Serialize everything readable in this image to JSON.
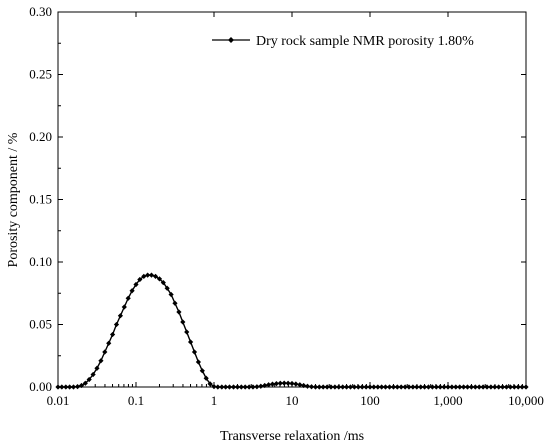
{
  "chart_data": {
    "type": "line",
    "xlabel": "Transverse relaxation /ms",
    "ylabel": "Porosity component / %",
    "xscale": "log",
    "xlim": [
      0.01,
      10000
    ],
    "ylim": [
      0,
      0.3
    ],
    "x_ticks": [
      0.01,
      0.1,
      1,
      10,
      100,
      1000,
      10000
    ],
    "x_tick_labels": [
      "0.01",
      "0.1",
      "1",
      "10",
      "100",
      "1,000",
      "10,000"
    ],
    "y_ticks": [
      0,
      0.05,
      0.1,
      0.15,
      0.2,
      0.25,
      0.3
    ],
    "y_tick_labels": [
      "0.00",
      "0.05",
      "0.10",
      "0.15",
      "0.20",
      "0.25",
      "0.30"
    ],
    "grid": false,
    "legend_position": "top-right",
    "series": [
      {
        "name": "Dry rock sample NMR porosity 1.80%",
        "color": "#000000",
        "marker": "diamond",
        "x": [
          0.01,
          0.0112,
          0.0126,
          0.0141,
          0.0158,
          0.0178,
          0.02,
          0.0224,
          0.0251,
          0.0282,
          0.0316,
          0.0355,
          0.0398,
          0.0447,
          0.0501,
          0.0562,
          0.0631,
          0.0708,
          0.0794,
          0.0891,
          0.1,
          0.112,
          0.126,
          0.141,
          0.158,
          0.178,
          0.2,
          0.224,
          0.251,
          0.282,
          0.316,
          0.355,
          0.398,
          0.447,
          0.501,
          0.562,
          0.631,
          0.708,
          0.794,
          0.891,
          1.0,
          1.12,
          1.26,
          1.41,
          1.58,
          1.78,
          2.0,
          2.24,
          2.51,
          2.82,
          3.16,
          3.55,
          3.98,
          4.47,
          5.01,
          5.62,
          6.31,
          7.08,
          7.94,
          8.91,
          10.0,
          11.2,
          12.6,
          14.1,
          15.8,
          17.8,
          20.0,
          22.4,
          25.1,
          28.2,
          31.6,
          35.5,
          39.8,
          44.7,
          50.1,
          56.2,
          63.1,
          70.8,
          79.4,
          89.1,
          100,
          112,
          126,
          141,
          158,
          178,
          200,
          224,
          251,
          282,
          316,
          355,
          398,
          447,
          501,
          562,
          631,
          708,
          794,
          891,
          1000,
          1122,
          1259,
          1413,
          1585,
          1778,
          1995,
          2239,
          2512,
          2818,
          3162,
          3548,
          3981,
          4467,
          5012,
          5623,
          6310,
          7079,
          7943,
          8913,
          10000
        ],
        "y": [
          0,
          0,
          0,
          0,
          0,
          0.0003,
          0.0012,
          0.003,
          0.006,
          0.01,
          0.015,
          0.021,
          0.028,
          0.035,
          0.042,
          0.05,
          0.057,
          0.064,
          0.071,
          0.077,
          0.082,
          0.086,
          0.0885,
          0.0895,
          0.0895,
          0.0885,
          0.0865,
          0.0835,
          0.079,
          0.074,
          0.067,
          0.06,
          0.052,
          0.044,
          0.036,
          0.028,
          0.02,
          0.013,
          0.007,
          0.0025,
          0.0003,
          0,
          0,
          0,
          0,
          0,
          0,
          0,
          0,
          0,
          0,
          0.0002,
          0.0006,
          0.0012,
          0.0018,
          0.0023,
          0.0027,
          0.003,
          0.0031,
          0.003,
          0.0028,
          0.0024,
          0.0018,
          0.0012,
          0.0006,
          0.0002,
          0,
          0,
          0,
          0,
          0,
          0,
          0,
          0,
          0,
          0,
          0,
          0,
          0,
          0,
          0,
          0,
          0,
          0,
          0,
          0,
          0,
          0,
          0,
          0,
          0,
          0,
          0,
          0,
          0,
          0,
          0,
          0,
          0,
          0,
          0,
          0,
          0,
          0,
          0,
          0,
          0,
          0,
          0,
          0,
          0,
          0,
          0,
          0,
          0,
          0,
          0,
          0,
          0,
          0,
          0
        ]
      }
    ]
  }
}
